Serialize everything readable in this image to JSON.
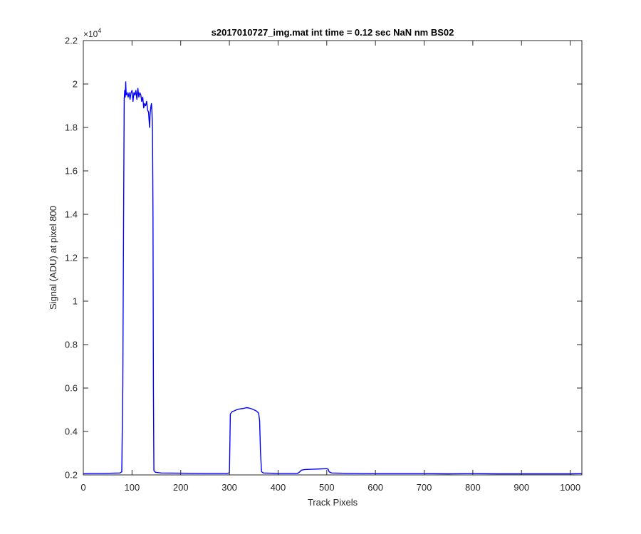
{
  "chart_data": {
    "type": "line",
    "title": "s2017010727_img.mat int time = 0.12 sec  NaN nm BS02",
    "xlabel": "Track Pixels",
    "ylabel": "Signal (ADU) at pixel 800",
    "y_exponent_label": "×10",
    "y_exponent_power": "4",
    "xlim": [
      0,
      1024
    ],
    "ylim": [
      0.2,
      2.2
    ],
    "y_scale_factor": 10000,
    "grid": false,
    "legend": "none",
    "x_ticks": [
      0,
      100,
      200,
      300,
      400,
      500,
      600,
      700,
      800,
      900,
      1000
    ],
    "x_tick_labels": [
      "0",
      "100",
      "200",
      "300",
      "400",
      "500",
      "600",
      "700",
      "800",
      "900",
      "1000"
    ],
    "y_ticks": [
      0.2,
      0.4,
      0.6,
      0.8,
      1,
      1.2,
      1.4,
      1.6,
      1.8,
      2,
      2.2
    ],
    "y_tick_labels": [
      "0.2",
      "0.4",
      "0.6",
      "0.8",
      "1",
      "1.2",
      "1.4",
      "1.6",
      "1.8",
      "2",
      "2.2"
    ],
    "series": [
      {
        "color": "#0000ff",
        "points": [
          [
            0,
            0.206
          ],
          [
            20,
            0.207
          ],
          [
            40,
            0.207
          ],
          [
            60,
            0.208
          ],
          [
            75,
            0.209
          ],
          [
            79,
            0.214
          ],
          [
            81,
            0.6
          ],
          [
            83,
            1.5
          ],
          [
            84,
            1.93
          ],
          [
            85,
            1.97
          ],
          [
            86,
            1.94
          ],
          [
            87,
            2.01
          ],
          [
            88,
            1.95
          ],
          [
            90,
            1.96
          ],
          [
            92,
            1.94
          ],
          [
            94,
            1.96
          ],
          [
            96,
            1.93
          ],
          [
            98,
            1.96
          ],
          [
            100,
            1.97
          ],
          [
            102,
            1.92
          ],
          [
            104,
            1.96
          ],
          [
            106,
            1.95
          ],
          [
            108,
            1.97
          ],
          [
            110,
            1.93
          ],
          [
            112,
            1.98
          ],
          [
            114,
            1.94
          ],
          [
            116,
            1.96
          ],
          [
            118,
            1.95
          ],
          [
            120,
            1.92
          ],
          [
            122,
            1.94
          ],
          [
            124,
            1.89
          ],
          [
            126,
            1.91
          ],
          [
            128,
            1.9
          ],
          [
            130,
            1.92
          ],
          [
            132,
            1.88
          ],
          [
            134,
            1.87
          ],
          [
            136,
            1.8
          ],
          [
            137,
            1.86
          ],
          [
            138,
            1.88
          ],
          [
            139,
            1.9
          ],
          [
            140,
            1.91
          ],
          [
            141,
            1.87
          ],
          [
            142,
            1.8
          ],
          [
            143,
            1.4
          ],
          [
            144,
            0.6
          ],
          [
            145,
            0.22
          ],
          [
            148,
            0.212
          ],
          [
            160,
            0.209
          ],
          [
            200,
            0.208
          ],
          [
            250,
            0.207
          ],
          [
            295,
            0.207
          ],
          [
            300,
            0.21
          ],
          [
            301,
            0.35
          ],
          [
            302,
            0.48
          ],
          [
            305,
            0.49
          ],
          [
            310,
            0.495
          ],
          [
            315,
            0.5
          ],
          [
            320,
            0.503
          ],
          [
            325,
            0.505
          ],
          [
            330,
            0.507
          ],
          [
            335,
            0.51
          ],
          [
            340,
            0.508
          ],
          [
            345,
            0.505
          ],
          [
            350,
            0.5
          ],
          [
            355,
            0.495
          ],
          [
            360,
            0.485
          ],
          [
            362,
            0.45
          ],
          [
            364,
            0.3
          ],
          [
            366,
            0.215
          ],
          [
            370,
            0.209
          ],
          [
            400,
            0.207
          ],
          [
            440,
            0.207
          ],
          [
            445,
            0.215
          ],
          [
            448,
            0.222
          ],
          [
            455,
            0.225
          ],
          [
            470,
            0.226
          ],
          [
            490,
            0.228
          ],
          [
            500,
            0.229
          ],
          [
            503,
            0.226
          ],
          [
            505,
            0.214
          ],
          [
            510,
            0.209
          ],
          [
            550,
            0.207
          ],
          [
            600,
            0.206
          ],
          [
            650,
            0.206
          ],
          [
            700,
            0.206
          ],
          [
            750,
            0.205
          ],
          [
            800,
            0.206
          ],
          [
            850,
            0.205
          ],
          [
            900,
            0.205
          ],
          [
            950,
            0.205
          ],
          [
            1000,
            0.205
          ],
          [
            1024,
            0.206
          ]
        ]
      }
    ]
  }
}
